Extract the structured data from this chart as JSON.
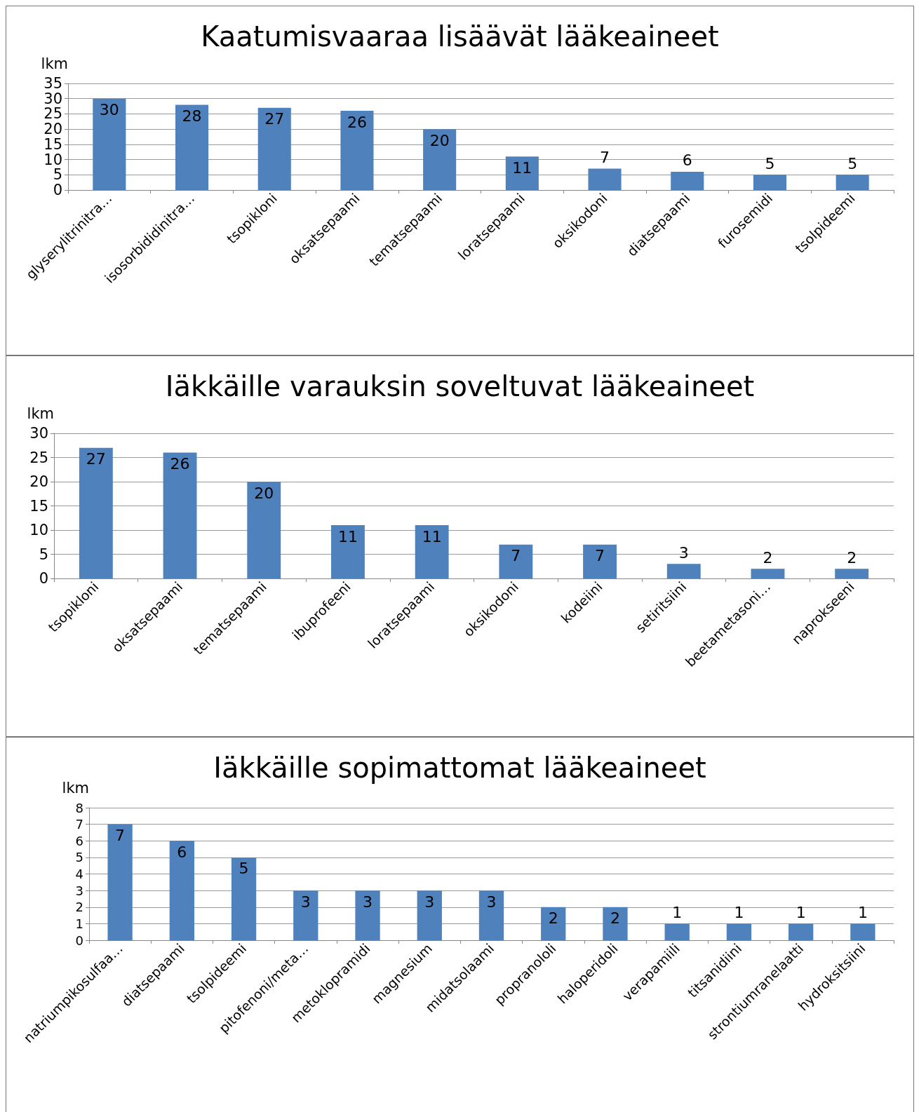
{
  "chart_data": [
    {
      "type": "bar",
      "title": "Kaatumisvaaraa lisäävät lääkeaineet",
      "ylabel": "lkm",
      "categories": [
        "glyserylitrinitra…",
        "isosorbididinitra…",
        "tsopikloni",
        "oksatsepaami",
        "tematsepaami",
        "loratsepaami",
        "oksikodoni",
        "diatsepaami",
        "furosemidi",
        "tsolpideemi"
      ],
      "values": [
        30,
        28,
        27,
        26,
        20,
        11,
        7,
        6,
        5,
        5
      ],
      "color": "#4f81bd",
      "ylim": [
        0,
        35
      ],
      "yticks": [
        0,
        5,
        10,
        15,
        20,
        25,
        30,
        35
      ],
      "grid": "y",
      "data_labels": true
    },
    {
      "type": "bar",
      "title": "Iäkkäille varauksin soveltuvat lääkeaineet",
      "ylabel": "lkm",
      "categories": [
        "tsopikloni",
        "oksatsepaami",
        "tematsepaami",
        "ibuprofeeni",
        "loratsepaami",
        "oksikodoni",
        "kodeiini",
        "setiritsiini",
        "beetametasoni…",
        "naprokseeni"
      ],
      "values": [
        27,
        26,
        20,
        11,
        11,
        7,
        7,
        3,
        2,
        2
      ],
      "color": "#4f81bd",
      "ylim": [
        0,
        30
      ],
      "yticks": [
        0,
        5,
        10,
        15,
        20,
        25,
        30
      ],
      "grid": "y",
      "data_labels": true
    },
    {
      "type": "bar",
      "title": "Iäkkäille sopimattomat lääkeaineet",
      "ylabel": "lkm",
      "categories": [
        "natriumpikosulfaa…",
        "diatsepaami",
        "tsolpideemi",
        "pitofenoni/meta…",
        "metoklopramidi",
        "magnesium",
        "midatsolaami",
        "propranololi",
        "haloperidoli",
        "verapamiili",
        "titsanidiini",
        "strontiumranelaatti",
        "hydroksitsiini"
      ],
      "values": [
        7,
        6,
        5,
        3,
        3,
        3,
        3,
        2,
        2,
        1,
        1,
        1,
        1
      ],
      "color": "#4f81bd",
      "ylim": [
        0,
        8
      ],
      "yticks": [
        0,
        1,
        2,
        3,
        4,
        5,
        6,
        7,
        8
      ],
      "grid": "y",
      "data_labels": true
    }
  ]
}
